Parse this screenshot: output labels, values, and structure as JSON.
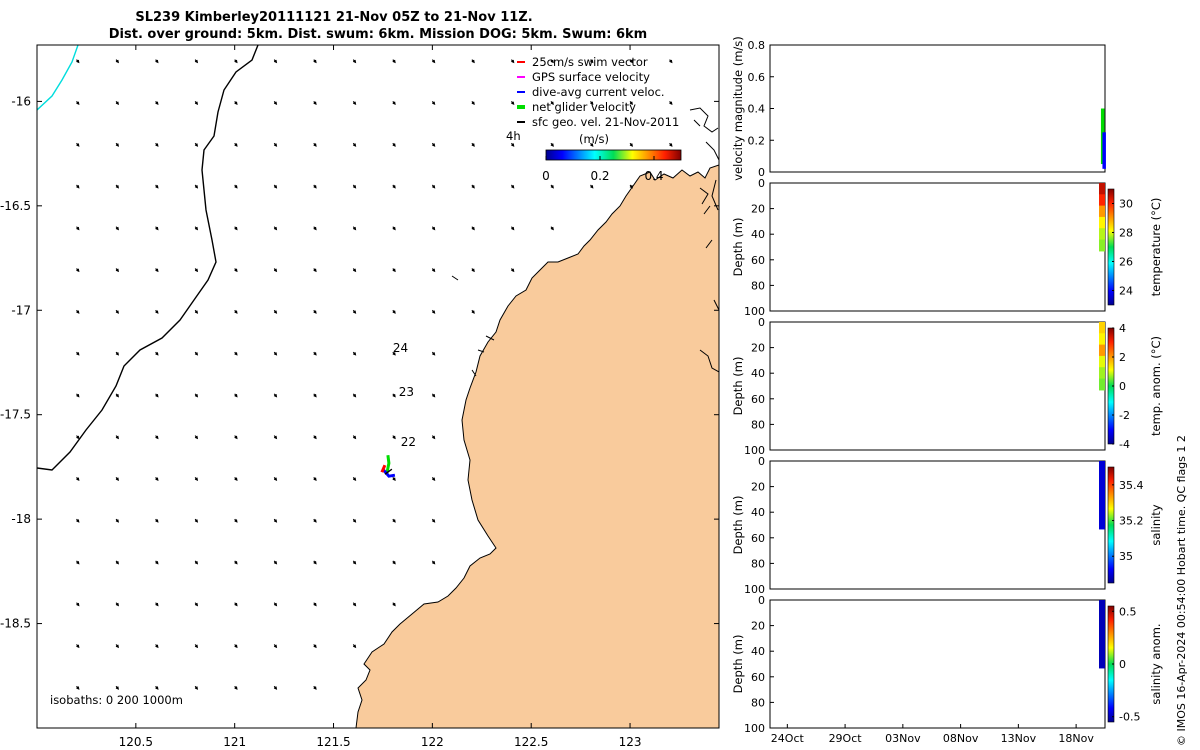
{
  "chart_data": [
    {
      "type": "map",
      "title_line1": "SL239 Kimberley20111121 21-Nov 05Z to 21-Nov 11Z.",
      "title_line2": "Dist. over ground: 5km. Dist. swum: 6km. Mission DOG: 5km. Swum: 6km",
      "x_ticks": [
        120.5,
        121,
        121.5,
        122,
        122.5,
        123
      ],
      "x_tick_labels": [
        "120.5",
        "121",
        "121.5",
        "122",
        "122.5",
        "123"
      ],
      "y_ticks": [
        -16,
        -16.5,
        -17,
        -17.5,
        -18,
        -18.5
      ],
      "y_tick_labels": [
        "-16",
        "-16.5",
        "-17",
        "-17.5",
        "-18",
        "-18.5"
      ],
      "xlim": [
        120.0,
        123.45
      ],
      "ylim": [
        -19.0,
        -15.73
      ],
      "legend": [
        {
          "label": "25cm/s swim vector",
          "color": "#ff0000"
        },
        {
          "label": "GPS surface velocity",
          "color": "#ff00ff"
        },
        {
          "label": "dive-avg current veloc.",
          "color": "#0000ff"
        },
        {
          "label": "net glider velocity",
          "color": "#00dd00"
        },
        {
          "label": "sfc geo. vel. 21-Nov-2011",
          "color": "#000000"
        }
      ],
      "legend_time_label": "4h",
      "colorbar_label": "(m/s)",
      "colorbar_ticks": [
        0,
        0.2,
        0.4
      ],
      "colorbar_tick_labels": [
        "0",
        "0.2",
        "0.4"
      ],
      "colorbar_range": [
        0,
        0.5
      ],
      "track_labels": [
        {
          "text": "24",
          "lon": 121.8,
          "lat": -17.2
        },
        {
          "text": "23",
          "lon": 121.83,
          "lat": -17.41
        },
        {
          "text": "22",
          "lon": 121.84,
          "lat": -17.65
        }
      ],
      "glider_position": {
        "lon": 121.77,
        "lat": -17.78
      },
      "isobaths_note": "isobaths: 0   200  1000m",
      "current_field": {
        "lon_min": 120.2,
        "lon_max": 123.4,
        "lon_step": 0.2,
        "lat_max": -15.8,
        "lat_min": -18.9,
        "lat_step": 0.2,
        "u": 0.04,
        "v": -0.05
      }
    },
    {
      "type": "line",
      "ylabel": "velocity magnitude (m/s)",
      "ylim": [
        0,
        0.8
      ],
      "y_ticks": [
        0,
        0.2,
        0.4,
        0.6,
        0.8
      ],
      "y_tick_labels": [
        "0",
        "0.2",
        "0.4",
        "0.6",
        "0.8"
      ],
      "x_range_days": [
        0,
        58
      ],
      "series": [
        {
          "name": "net glider velocity",
          "color": "#00dd00",
          "day": 57.6,
          "values": [
            0.05,
            0.4
          ]
        },
        {
          "name": "dive-avg current veloc.",
          "color": "#0000ff",
          "day": 57.6,
          "values": [
            0.02,
            0.25
          ]
        }
      ]
    },
    {
      "type": "scatter",
      "ylabel": "Depth (m)",
      "colorbar_label": "temperature (°C)",
      "y_ticks": [
        0,
        20,
        40,
        60,
        80,
        100
      ],
      "y_tick_labels": [
        "0",
        "20",
        "40",
        "60",
        "80",
        "100"
      ],
      "colorbar_ticks": [
        24,
        26,
        28,
        30
      ],
      "colorbar_tick_labels": [
        "24",
        "26",
        "28",
        "30"
      ],
      "colorbar_range": [
        23,
        31
      ],
      "profile_depth": [
        0,
        53
      ],
      "profile_values": [
        30.5,
        30.0,
        29.0,
        28.2,
        27.8,
        27.6
      ]
    },
    {
      "type": "scatter",
      "ylabel": "Depth (m)",
      "colorbar_label": "temp. anom. (°C)",
      "y_ticks": [
        0,
        20,
        40,
        60,
        80,
        100
      ],
      "y_tick_labels": [
        "0",
        "20",
        "40",
        "60",
        "80",
        "100"
      ],
      "colorbar_ticks": [
        -4,
        -2,
        0,
        2,
        4
      ],
      "colorbar_tick_labels": [
        "-4",
        "-2",
        "0",
        "2",
        "4"
      ],
      "colorbar_range": [
        -4,
        4
      ],
      "profile_depth": [
        0,
        53
      ],
      "profile_values": [
        1.5,
        1.2,
        2.0,
        1.0,
        0.7,
        0.5
      ]
    },
    {
      "type": "scatter",
      "ylabel": "Depth (m)",
      "colorbar_label": "salinity",
      "y_ticks": [
        0,
        20,
        40,
        60,
        80,
        100
      ],
      "y_tick_labels": [
        "0",
        "20",
        "40",
        "60",
        "80",
        "100"
      ],
      "colorbar_ticks": [
        35,
        35.2,
        35.4
      ],
      "colorbar_tick_labels": [
        "35",
        "35.2",
        "35.4"
      ],
      "colorbar_range": [
        34.85,
        35.5
      ],
      "profile_depth": [
        0,
        53
      ],
      "profile_values": [
        34.9,
        34.9,
        34.9,
        34.9,
        34.9,
        34.9
      ]
    },
    {
      "type": "scatter",
      "ylabel": "Depth (m)",
      "colorbar_label": "salinity anom.",
      "y_ticks": [
        0,
        20,
        40,
        60,
        80,
        100
      ],
      "y_tick_labels": [
        "0",
        "20",
        "40",
        "60",
        "80",
        "100"
      ],
      "colorbar_ticks": [
        -0.5,
        0,
        0.5
      ],
      "colorbar_tick_labels": [
        "-0.5",
        "0",
        "0.5"
      ],
      "colorbar_range": [
        -0.55,
        0.55
      ],
      "profile_depth": [
        0,
        53
      ],
      "profile_values": [
        -0.5,
        -0.5,
        -0.5,
        -0.5,
        -0.5,
        -0.5
      ],
      "x_ticks_days": [
        3,
        13,
        23,
        33,
        43,
        53
      ],
      "x_tick_labels": [
        "24Oct",
        "29Oct",
        "03Nov",
        "08Nov",
        "13Nov",
        "18Nov"
      ]
    }
  ],
  "footer_credit": "© IMOS 16-Apr-2024 00:54:00 Hobart time. QC flags 1  2"
}
